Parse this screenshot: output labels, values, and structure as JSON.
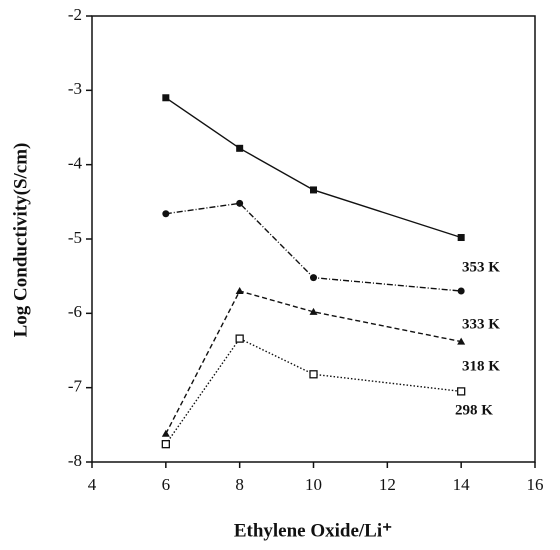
{
  "chart_data": {
    "type": "line",
    "x_label": "Ethylene Oxide/Li⁺",
    "y_label": "Log Conductivity(S/cm)",
    "xlim": [
      4,
      16
    ],
    "xticks": [
      4,
      6,
      8,
      10,
      12,
      14,
      16
    ],
    "ylim": [
      -8,
      -2
    ],
    "yticks": [
      -8,
      -7,
      -6,
      -5,
      -4,
      -3,
      -2
    ],
    "series": [
      {
        "name": "353 K",
        "color": "#111111",
        "marker": "square",
        "line_style": "solid",
        "x": [
          6,
          8,
          10,
          14
        ],
        "values": [
          -3.1,
          -3.78,
          -4.34,
          -4.98
        ]
      },
      {
        "name": "333 K",
        "color": "#111111",
        "marker": "circle",
        "line_style": "dashdot",
        "x": [
          6,
          8,
          10,
          14
        ],
        "values": [
          -4.66,
          -4.52,
          -5.52,
          -5.7
        ]
      },
      {
        "name": "318 K",
        "color": "#111111",
        "marker": "triangle",
        "line_style": "dashed",
        "x": [
          6,
          8,
          10,
          14
        ],
        "values": [
          -7.62,
          -5.7,
          -5.98,
          -6.38
        ]
      },
      {
        "name": "298 K",
        "color": "#111111",
        "marker": "open-square",
        "line_style": "dotted",
        "x": [
          6,
          8,
          10,
          14
        ],
        "values": [
          -7.76,
          -6.34,
          -6.82,
          -7.05
        ]
      }
    ]
  }
}
